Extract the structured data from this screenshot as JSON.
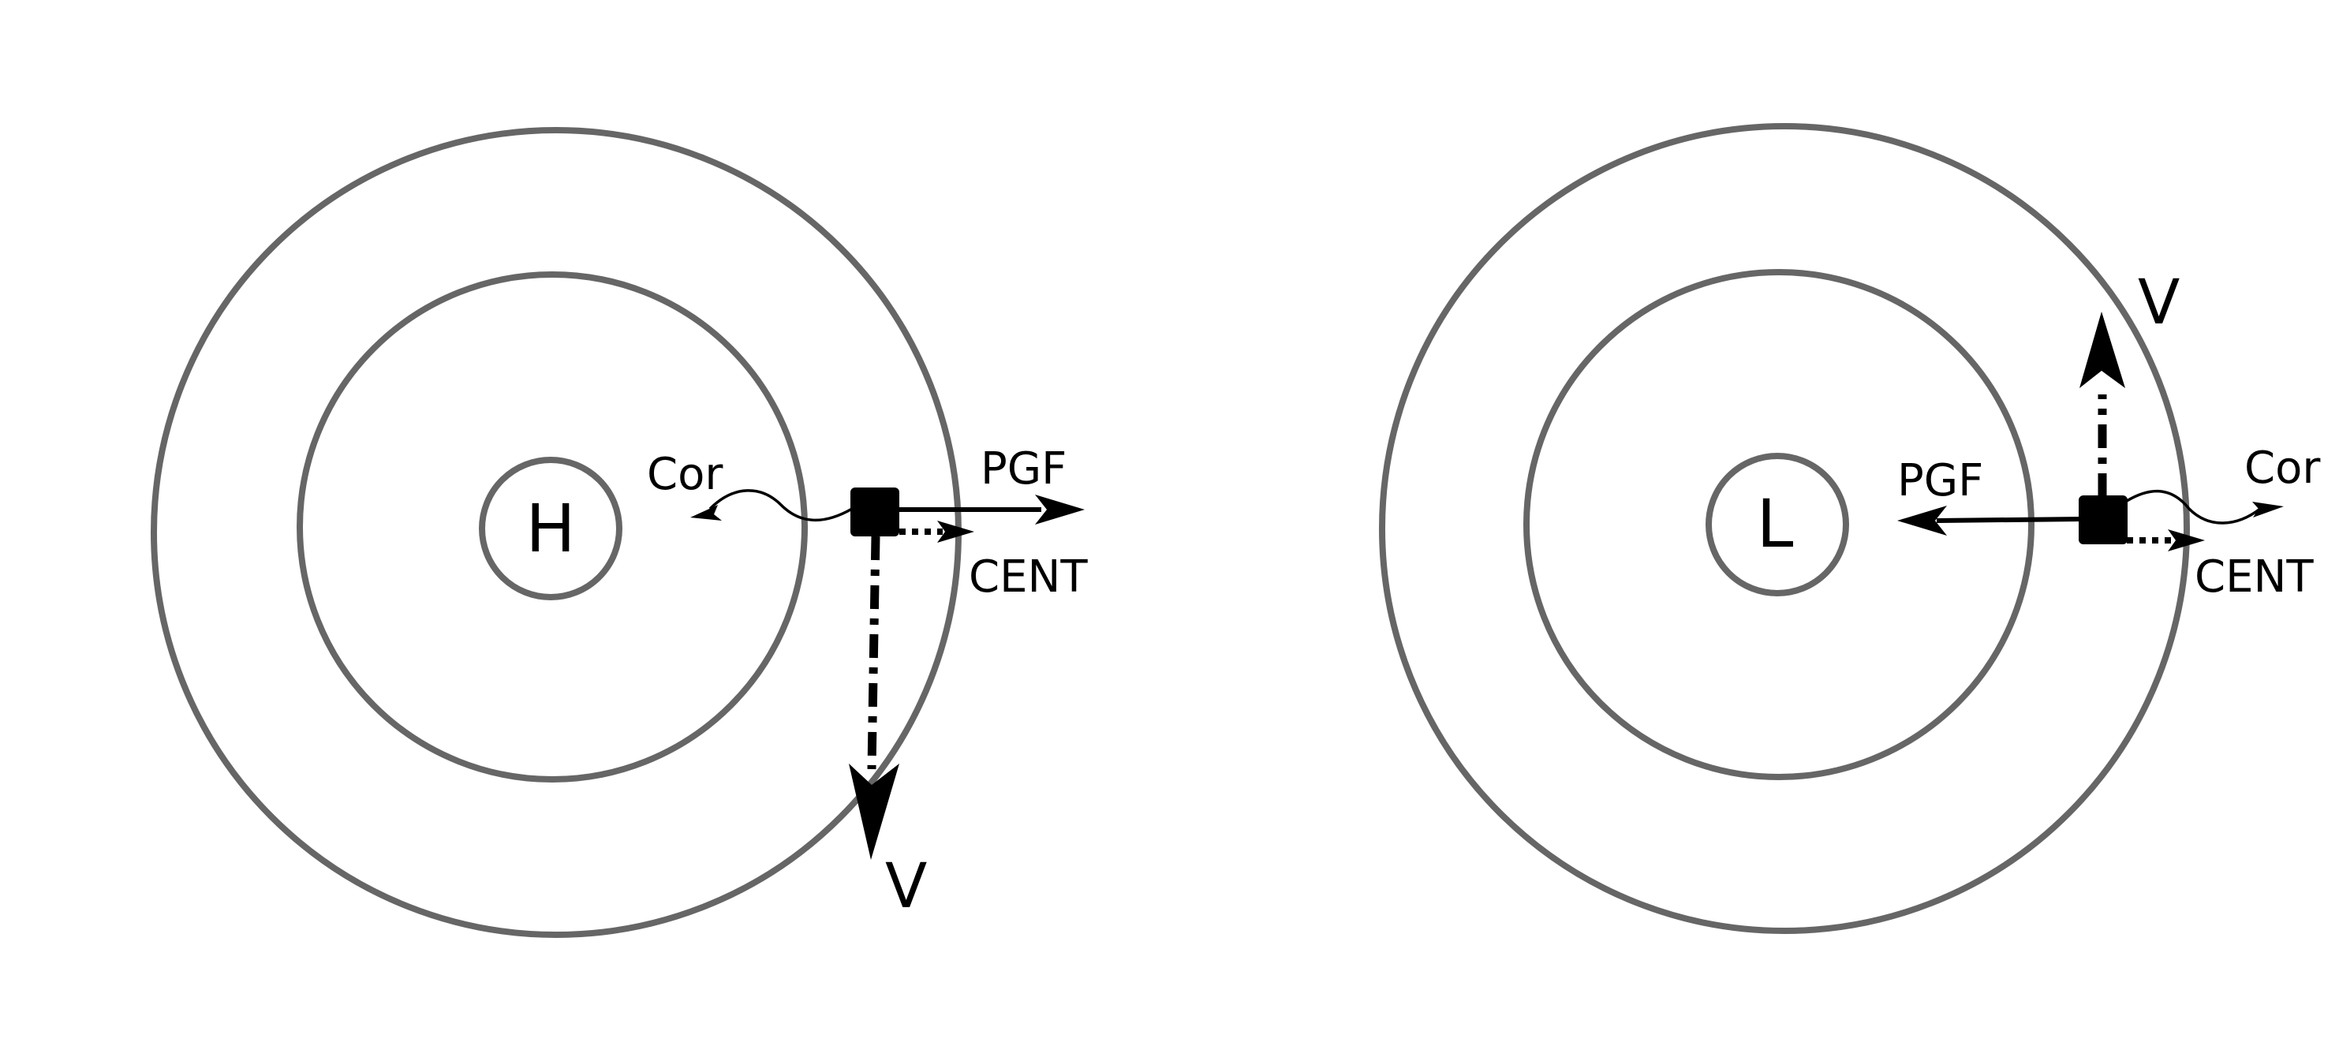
{
  "panels": [
    {
      "id": "high",
      "center_label": "H",
      "labels": {
        "cor": "Cor",
        "pgf": "PGF",
        "cent": "CENT",
        "v": "V"
      }
    },
    {
      "id": "low",
      "center_label": "L",
      "labels": {
        "cor": "Cor",
        "pgf": "PGF",
        "cent": "CENT",
        "v": "V"
      }
    }
  ],
  "colors": {
    "ring": "#666666",
    "vector": "#000000",
    "background": "#ffffff"
  },
  "arrow_styles": {
    "pgf": "solid",
    "cent": "dotted",
    "cor": "wavy",
    "v": "dash-dot"
  }
}
